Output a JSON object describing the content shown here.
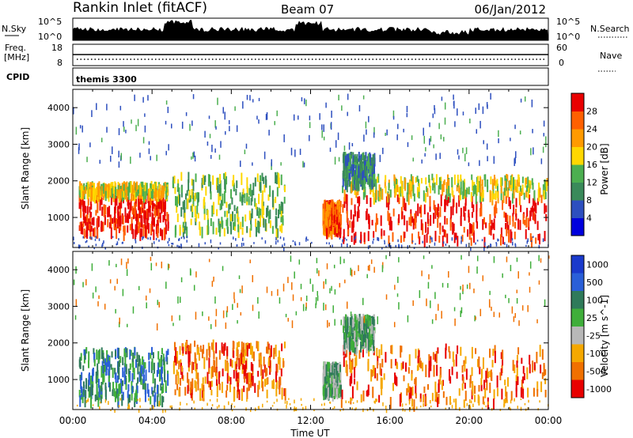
{
  "header": {
    "station": "Rankin Inlet (fitACF)",
    "beam": "Beam 07",
    "date": "06/Jan/2012"
  },
  "strips": {
    "nsky_label": "N.Sky",
    "nsky_ticks": [
      "10^5",
      "10^0"
    ],
    "nsearch_label": "N.Search",
    "freq_label": "Freq.",
    "freq_unit": "[MHz]",
    "freq_ticks": [
      "18",
      "8"
    ],
    "nave_label": "Nave",
    "nave_ticks": [
      "60",
      "0"
    ],
    "cpid_label": "CPID",
    "cpid_value": "themis 3300"
  },
  "time_axis": {
    "label": "Time UT",
    "ticks": [
      "00:00",
      "04:00",
      "08:00",
      "12:00",
      "16:00",
      "20:00",
      "00:00"
    ]
  },
  "chart_data": [
    {
      "type": "heatmap",
      "quantity": "power",
      "ylabel": "Slant Range [km]",
      "yticks": [
        1000,
        2000,
        3000,
        4000
      ],
      "ylim": [
        180,
        4500
      ],
      "xlim_hours": [
        0,
        24
      ],
      "colorbar_label": "Power [dB]",
      "colorbar_ticks": [
        4,
        8,
        12,
        16,
        20,
        24,
        28
      ],
      "colors": [
        "#0000dd",
        "#2d4fbf",
        "#3a8a5a",
        "#4caf50",
        "#ffd700",
        "#ff9a00",
        "#ff6000",
        "#e80000"
      ],
      "scatter_regions": [
        {
          "t": [
            0.3,
            4.8
          ],
          "r": [
            650,
            1700
          ],
          "level": 7
        },
        {
          "t": [
            0.3,
            4.8
          ],
          "r": [
            1700,
            2000
          ],
          "level": 4
        },
        {
          "t": [
            5.0,
            10.7
          ],
          "r": [
            700,
            2250
          ],
          "level": 3
        },
        {
          "t": [
            12.6,
            13.5
          ],
          "r": [
            700,
            1500
          ],
          "level": 6
        },
        {
          "t": [
            13.5,
            23.9
          ],
          "r": [
            450,
            1650
          ],
          "level": 7
        },
        {
          "t": [
            13.5,
            23.9
          ],
          "r": [
            1650,
            2200
          ],
          "level": 4
        },
        {
          "t": [
            13.6,
            15.2
          ],
          "r": [
            2000,
            2800
          ],
          "level": 2
        }
      ]
    },
    {
      "type": "heatmap",
      "quantity": "velocity",
      "ylabel": "Slant Range [km]",
      "yticks": [
        1000,
        2000,
        3000,
        4000
      ],
      "ylim": [
        180,
        4500
      ],
      "xlim_hours": [
        0,
        24
      ],
      "colorbar_label": "Velocity [m s^-1]",
      "colorbar_ticks": [
        1000,
        500,
        100,
        25,
        -25,
        -100,
        -500,
        -1000
      ],
      "colors": [
        "#1a3acc",
        "#2a5fd8",
        "#2f7a5a",
        "#3fae3a",
        "#b8b8b8",
        "#f5a800",
        "#f07000",
        "#e80000"
      ],
      "scatter_regions": [
        {
          "t": [
            0.3,
            4.8
          ],
          "r": [
            500,
            1900
          ],
          "level": 2
        },
        {
          "t": [
            5.0,
            10.7
          ],
          "r": [
            700,
            2100
          ],
          "level": 6
        },
        {
          "t": [
            12.6,
            13.5
          ],
          "r": [
            700,
            1500
          ],
          "level": 3
        },
        {
          "t": [
            13.5,
            23.9
          ],
          "r": [
            450,
            2000
          ],
          "level": 6
        },
        {
          "t": [
            13.6,
            15.2
          ],
          "r": [
            2000,
            2800
          ],
          "level": 3
        }
      ]
    }
  ]
}
